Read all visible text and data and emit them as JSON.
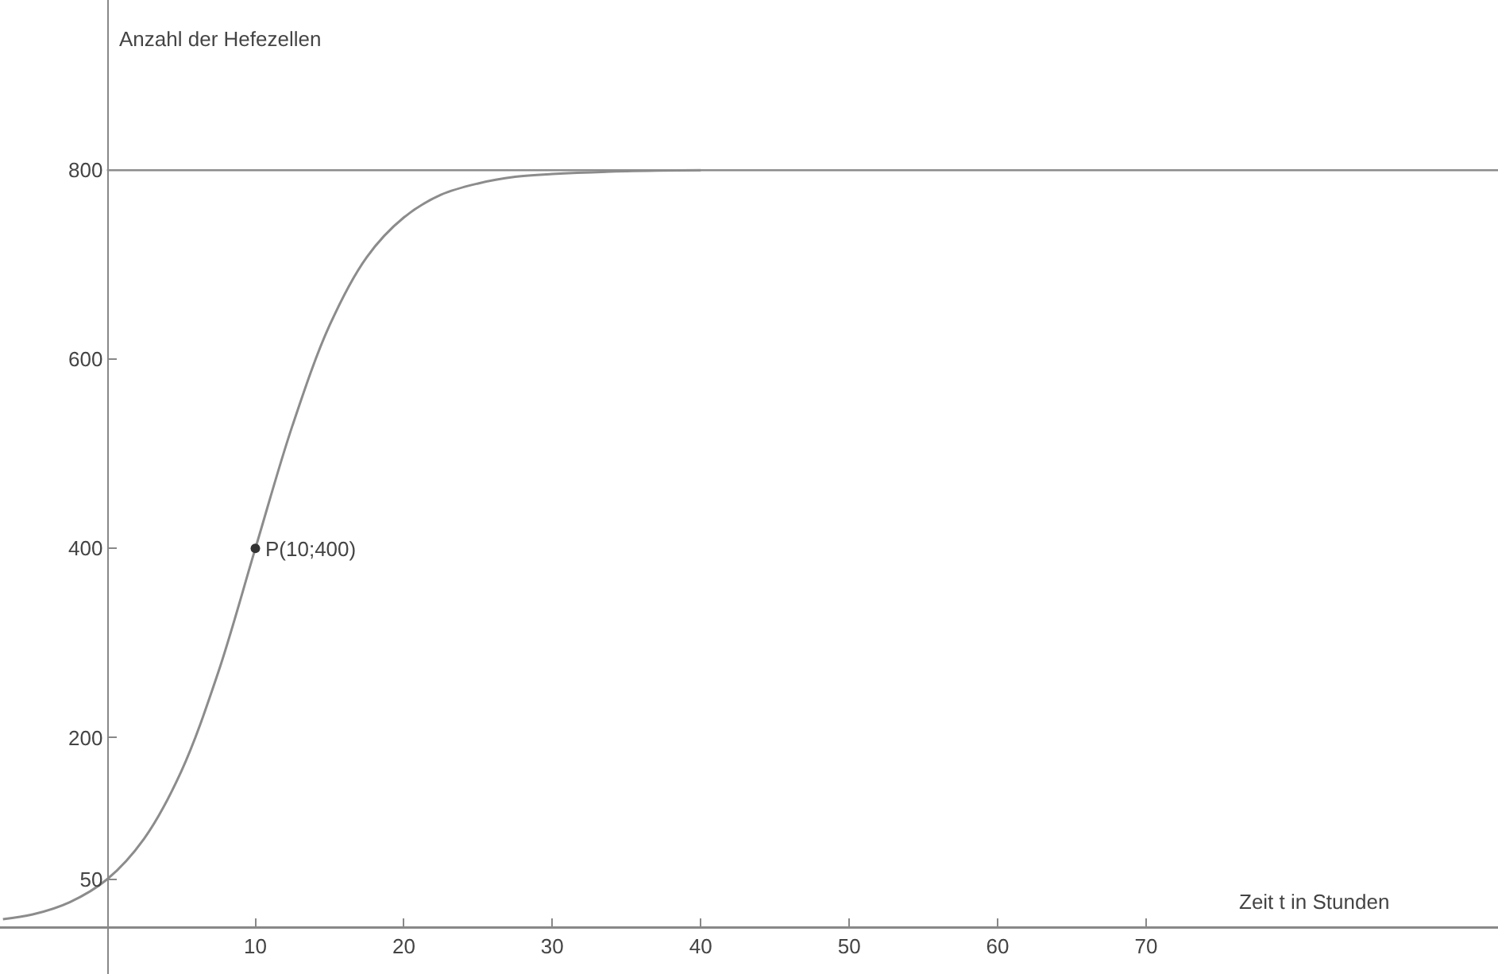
{
  "chart_data": {
    "type": "line",
    "xlabel": "Zeit t in Stunden",
    "ylabel": "Anzahl der Hefezellen",
    "xlim": [
      -7.2,
      93.7
    ],
    "ylim": [
      -50,
      980
    ],
    "xticks": [
      10,
      20,
      30,
      40,
      50,
      60,
      70
    ],
    "yticks": [
      50,
      200,
      400,
      600,
      800
    ],
    "grid": false,
    "line_style": "solid",
    "series": [
      {
        "marker": "none",
        "color": "#8c8c8c",
        "x": [
          -7,
          -5,
          -2.5,
          0,
          2.5,
          5,
          7.5,
          10,
          12.5,
          15,
          17.5,
          20,
          22.5,
          25,
          27.5,
          30,
          35,
          40
        ],
        "values": [
          8,
          13,
          26,
          50,
          93,
          164,
          269,
          400,
          530,
          636,
          708,
          750,
          774,
          786,
          793,
          796,
          799,
          800
        ]
      },
      {
        "type": "scatter",
        "marker": "circle",
        "color": "#333333",
        "x": [
          10
        ],
        "values": [
          400
        ]
      }
    ],
    "ref_lines": [
      {
        "axis": "y",
        "value": 800,
        "color": "#8c8c8c"
      }
    ],
    "annotations": [
      {
        "text": "P(10;400)",
        "x": 10,
        "y": 400
      }
    ]
  }
}
